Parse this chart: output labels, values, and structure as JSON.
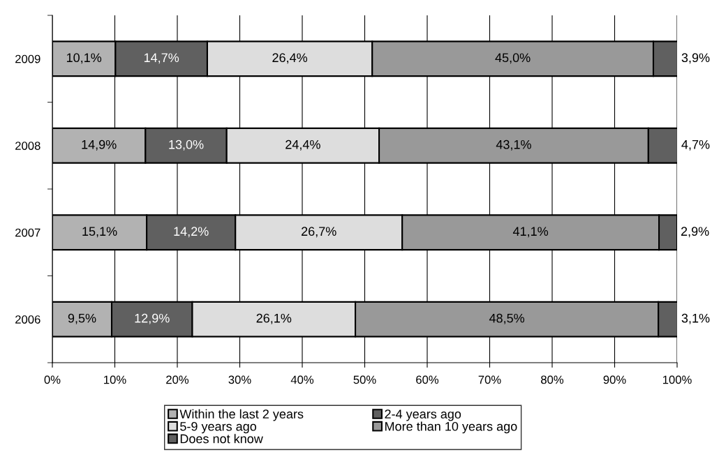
{
  "chart_data": {
    "type": "bar",
    "orientation": "horizontal",
    "stacked": true,
    "categories": [
      "2009",
      "2008",
      "2007",
      "2006"
    ],
    "series": [
      {
        "name": "Within the last 2 years",
        "color": "#b2b2b2",
        "values": [
          10.1,
          14.9,
          15.1,
          9.5
        ],
        "value_labels": [
          "10,1%",
          "14,9%",
          "15,1%",
          "9,5%"
        ]
      },
      {
        "name": "2-4 years ago",
        "color": "#606060",
        "values": [
          14.7,
          13.0,
          14.2,
          12.9
        ],
        "value_labels": [
          "14,7%",
          "13,0%",
          "14,2%",
          "12,9%"
        ]
      },
      {
        "name": "5-9 years ago",
        "color": "#dddddd",
        "values": [
          26.4,
          24.4,
          26.7,
          26.1
        ],
        "value_labels": [
          "26,4%",
          "24,4%",
          "26,7%",
          "26,1%"
        ]
      },
      {
        "name": "More than 10 years ago",
        "color": "#999999",
        "values": [
          45.0,
          43.1,
          41.1,
          48.5
        ],
        "value_labels": [
          "45,0%",
          "43,1%",
          "41,1%",
          "48,5%"
        ]
      },
      {
        "name": "Does not know",
        "color": "#606060",
        "values": [
          3.9,
          4.7,
          2.9,
          3.1
        ],
        "value_labels": [
          "3,9%",
          "4,7%",
          "2,9%",
          "3,1%"
        ]
      }
    ],
    "xlim": [
      0,
      100
    ],
    "xticks": [
      {
        "value": 0,
        "label": "0%"
      },
      {
        "value": 10,
        "label": "10%"
      },
      {
        "value": 20,
        "label": "20%"
      },
      {
        "value": 30,
        "label": "30%"
      },
      {
        "value": 40,
        "label": "40%"
      },
      {
        "value": 50,
        "label": "50%"
      },
      {
        "value": 60,
        "label": "60%"
      },
      {
        "value": 70,
        "label": "70%"
      },
      {
        "value": 80,
        "label": "80%"
      },
      {
        "value": 90,
        "label": "90%"
      },
      {
        "value": 100,
        "label": "100%"
      }
    ],
    "grid": "x",
    "legend": "bottom"
  }
}
